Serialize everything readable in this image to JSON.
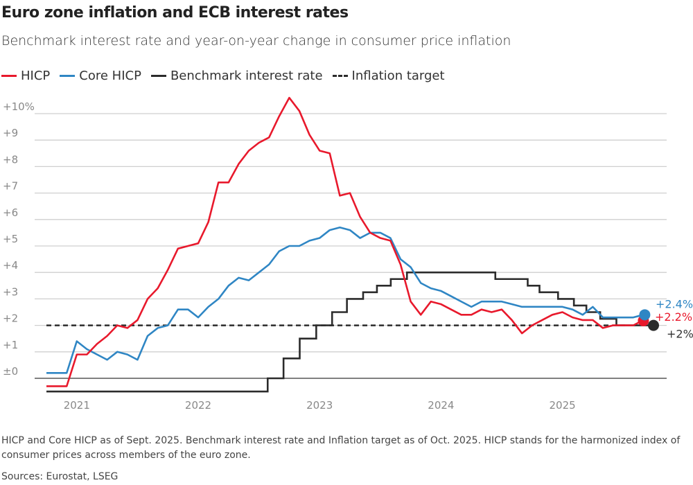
{
  "title": "Euro zone inflation and ECB interest rates",
  "subtitle": "Benchmark interest rate and year-on-year change in consumer price inflation",
  "legend": [
    {
      "label": "HICP",
      "color": "#e8192c",
      "style": "solid"
    },
    {
      "label": "Core HICP",
      "color": "#2f86c4",
      "style": "solid"
    },
    {
      "label": "Benchmark interest rate",
      "color": "#2b2b2b",
      "style": "solid"
    },
    {
      "label": "Inflation target",
      "color": "#2b2b2b",
      "style": "dashed"
    }
  ],
  "footnote": "HICP and Core HICP as of Sept. 2025. Benchmark interest rate and Inflation target as of Oct. 2025. HICP stands for the harmonized index of consumer prices across members of the euro zone.",
  "sources": "Sources: Eurostat, LSEG",
  "chart_data": {
    "type": "line",
    "x_start": "2020-10",
    "x_end": "2025-10",
    "ylim": [
      -0.5,
      10.6
    ],
    "y_ticks": [
      {
        "v": 0,
        "label": "±0"
      },
      {
        "v": 1,
        "label": "+1"
      },
      {
        "v": 2,
        "label": "+2"
      },
      {
        "v": 3,
        "label": "+3"
      },
      {
        "v": 4,
        "label": "+4"
      },
      {
        "v": 5,
        "label": "+5"
      },
      {
        "v": 6,
        "label": "+6"
      },
      {
        "v": 7,
        "label": "+7"
      },
      {
        "v": 8,
        "label": "+8"
      },
      {
        "v": 9,
        "label": "+9"
      },
      {
        "v": 10,
        "label": "+10%"
      }
    ],
    "x_ticks": [
      "2021",
      "2022",
      "2023",
      "2024",
      "2025"
    ],
    "grid": true,
    "series": [
      {
        "name": "HICP",
        "color": "#e8192c",
        "end_label": "+2.2%",
        "values": [
          -0.3,
          -0.3,
          -0.3,
          0.9,
          0.9,
          1.3,
          1.6,
          2.0,
          1.9,
          2.2,
          3.0,
          3.4,
          4.1,
          4.9,
          5.0,
          5.1,
          5.9,
          7.4,
          7.4,
          8.1,
          8.6,
          8.9,
          9.1,
          9.9,
          10.6,
          10.1,
          9.2,
          8.6,
          8.5,
          6.9,
          7.0,
          6.1,
          5.5,
          5.3,
          5.2,
          4.3,
          2.9,
          2.4,
          2.9,
          2.8,
          2.6,
          2.4,
          2.4,
          2.6,
          2.5,
          2.6,
          2.2,
          1.7,
          2.0,
          2.2,
          2.4,
          2.5,
          2.3,
          2.2,
          2.2,
          1.9,
          2.0,
          2.0,
          2.0,
          2.2
        ]
      },
      {
        "name": "Core HICP",
        "color": "#2f86c4",
        "end_label": "+2.4%",
        "values": [
          0.2,
          0.2,
          0.2,
          1.4,
          1.1,
          0.9,
          0.7,
          1.0,
          0.9,
          0.7,
          1.6,
          1.9,
          2.0,
          2.6,
          2.6,
          2.3,
          2.7,
          3.0,
          3.5,
          3.8,
          3.7,
          4.0,
          4.3,
          4.8,
          5.0,
          5.0,
          5.2,
          5.3,
          5.6,
          5.7,
          5.6,
          5.3,
          5.5,
          5.5,
          5.3,
          4.5,
          4.2,
          3.6,
          3.4,
          3.3,
          3.1,
          2.9,
          2.7,
          2.9,
          2.9,
          2.9,
          2.8,
          2.7,
          2.7,
          2.7,
          2.7,
          2.7,
          2.6,
          2.4,
          2.7,
          2.3,
          2.3,
          2.3,
          2.3,
          2.4
        ]
      },
      {
        "name": "Benchmark interest rate",
        "color": "#2b2b2b",
        "end_label": "+2%",
        "step_changes": [
          [
            "2020-10-01",
            -0.5
          ],
          [
            "2022-07-27",
            0
          ],
          [
            "2022-09-14",
            0.75
          ],
          [
            "2022-11-02",
            1.5
          ],
          [
            "2022-12-21",
            2.0
          ],
          [
            "2023-02-08",
            2.5
          ],
          [
            "2023-03-22",
            3.0
          ],
          [
            "2023-05-10",
            3.25
          ],
          [
            "2023-06-21",
            3.5
          ],
          [
            "2023-08-02",
            3.75
          ],
          [
            "2023-09-20",
            4.0
          ],
          [
            "2024-06-12",
            3.75
          ],
          [
            "2024-09-18",
            3.5
          ],
          [
            "2024-10-23",
            3.25
          ],
          [
            "2024-12-18",
            3.0
          ],
          [
            "2025-02-05",
            2.75
          ],
          [
            "2025-03-12",
            2.5
          ],
          [
            "2025-04-23",
            2.25
          ],
          [
            "2025-06-11",
            2.0
          ],
          [
            "2025-10-01",
            2.0
          ]
        ]
      },
      {
        "name": "Inflation target",
        "color": "#2b2b2b",
        "dashed": true,
        "value": 2
      }
    ]
  }
}
